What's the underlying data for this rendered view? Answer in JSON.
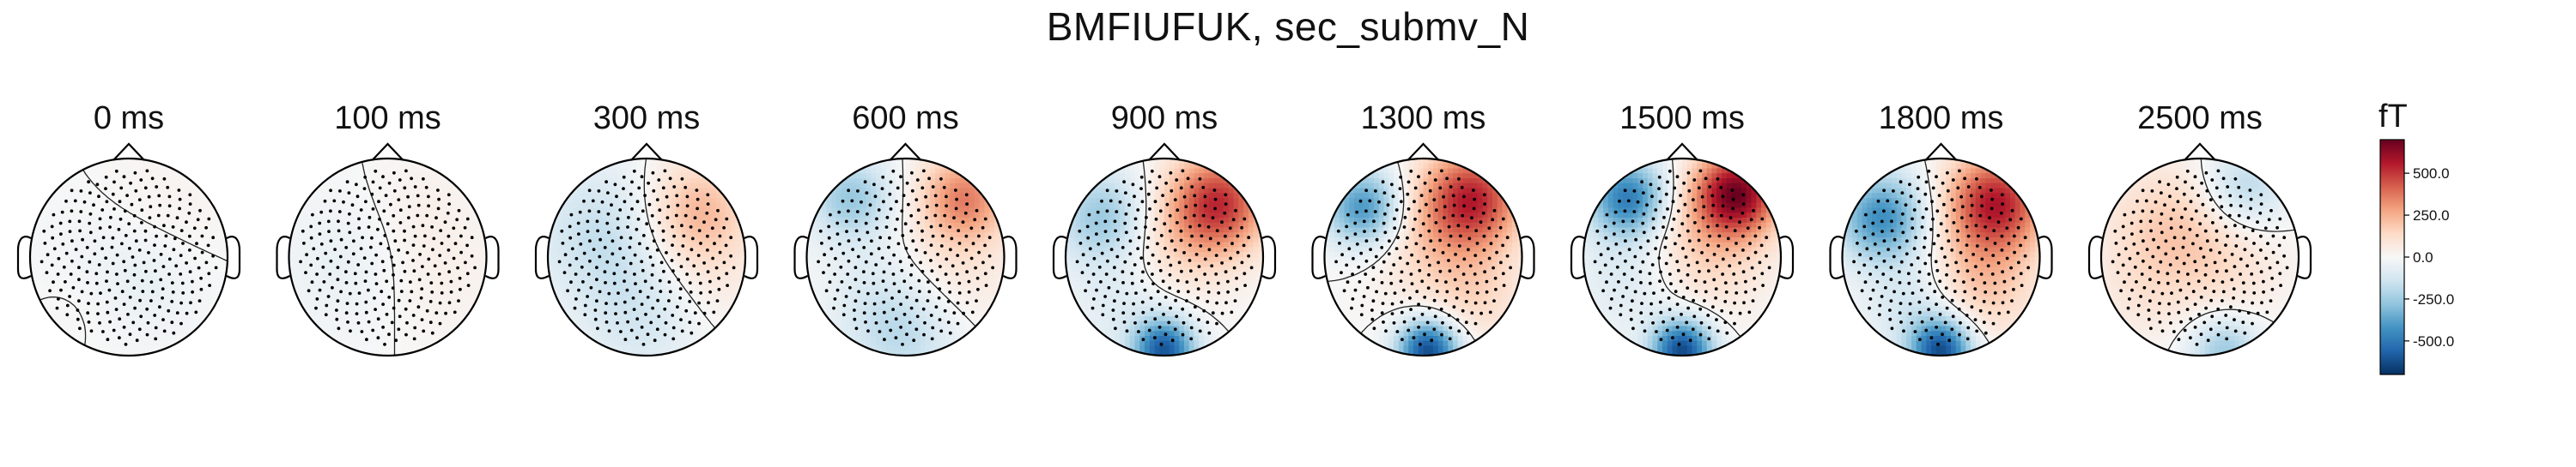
{
  "figure": {
    "title": "BMFIUFUK, sec_submv_N"
  },
  "chart_data": {
    "type": "heatmap",
    "title": "BMFIUFUK, sec_submv_N",
    "panels": [
      {
        "label": "0 ms",
        "time_ms": 0,
        "components": [
          {
            "cx": 0.2,
            "cy": 0.3,
            "amp": -0.07,
            "sigma": 0.4
          },
          {
            "cx": -0.2,
            "cy": -0.1,
            "amp": -0.05,
            "sigma": 0.5
          },
          {
            "cx": 0.5,
            "cy": -0.4,
            "amp": 0.04,
            "sigma": 0.4
          },
          {
            "cx": -0.5,
            "cy": 0.5,
            "amp": 0.03,
            "sigma": 0.3
          },
          {
            "cx": 0.0,
            "cy": -0.6,
            "amp": 0.03,
            "sigma": 0.4
          }
        ]
      },
      {
        "label": "100 ms",
        "time_ms": 100,
        "components": [
          {
            "cx": -0.4,
            "cy": 0.1,
            "amp": -0.1,
            "sigma": 0.5
          },
          {
            "cx": 0.4,
            "cy": 0.1,
            "amp": 0.08,
            "sigma": 0.5
          },
          {
            "cx": 0.3,
            "cy": -0.6,
            "amp": 0.04,
            "sigma": 0.35
          }
        ]
      },
      {
        "label": "300 ms",
        "time_ms": 300,
        "components": [
          {
            "cx": 0.5,
            "cy": -0.45,
            "amp": 0.42,
            "sigma": 0.38
          },
          {
            "cx": -0.45,
            "cy": -0.25,
            "amp": -0.28,
            "sigma": 0.5
          },
          {
            "cx": 0.0,
            "cy": 0.6,
            "amp": -0.22,
            "sigma": 0.45
          },
          {
            "cx": 0.55,
            "cy": 0.3,
            "amp": 0.12,
            "sigma": 0.4
          }
        ]
      },
      {
        "label": "600 ms",
        "time_ms": 600,
        "components": [
          {
            "cx": 0.6,
            "cy": -0.6,
            "amp": 0.6,
            "sigma": 0.32
          },
          {
            "cx": -0.55,
            "cy": -0.6,
            "amp": -0.45,
            "sigma": 0.3
          },
          {
            "cx": 0.0,
            "cy": 0.75,
            "amp": -0.35,
            "sigma": 0.42
          },
          {
            "cx": 0.4,
            "cy": 0.25,
            "amp": 0.18,
            "sigma": 0.45
          },
          {
            "cx": -0.3,
            "cy": 0.25,
            "amp": -0.1,
            "sigma": 0.4
          }
        ]
      },
      {
        "label": "900 ms",
        "time_ms": 900,
        "components": [
          {
            "cx": 0.55,
            "cy": -0.55,
            "amp": 0.85,
            "sigma": 0.35
          },
          {
            "cx": -0.6,
            "cy": -0.4,
            "amp": -0.5,
            "sigma": 0.35
          },
          {
            "cx": 0.0,
            "cy": 0.95,
            "amp": -1.0,
            "sigma": 0.22
          },
          {
            "cx": 0.0,
            "cy": -0.1,
            "amp": 0.25,
            "sigma": 0.45
          },
          {
            "cx": -0.35,
            "cy": 0.45,
            "amp": -0.2,
            "sigma": 0.4
          }
        ]
      },
      {
        "label": "1300 ms",
        "time_ms": 1300,
        "components": [
          {
            "cx": 0.5,
            "cy": -0.6,
            "amp": 0.85,
            "sigma": 0.35
          },
          {
            "cx": -0.6,
            "cy": -0.5,
            "amp": -0.75,
            "sigma": 0.28
          },
          {
            "cx": 0.05,
            "cy": 0.95,
            "amp": -1.1,
            "sigma": 0.22
          },
          {
            "cx": 0.1,
            "cy": -0.2,
            "amp": 0.25,
            "sigma": 0.45
          },
          {
            "cx": 0.55,
            "cy": 0.4,
            "amp": 0.2,
            "sigma": 0.35
          }
        ]
      },
      {
        "label": "1500 ms",
        "time_ms": 1500,
        "components": [
          {
            "cx": 0.55,
            "cy": -0.65,
            "amp": 1.1,
            "sigma": 0.3
          },
          {
            "cx": -0.55,
            "cy": -0.6,
            "amp": -0.85,
            "sigma": 0.28
          },
          {
            "cx": 0.0,
            "cy": 0.95,
            "amp": -1.1,
            "sigma": 0.22
          },
          {
            "cx": 0.2,
            "cy": -0.1,
            "amp": 0.3,
            "sigma": 0.45
          },
          {
            "cx": -0.5,
            "cy": 0.2,
            "amp": -0.2,
            "sigma": 0.4
          }
        ]
      },
      {
        "label": "1800 ms",
        "time_ms": 1800,
        "components": [
          {
            "cx": 0.55,
            "cy": -0.55,
            "amp": 0.95,
            "sigma": 0.35
          },
          {
            "cx": -0.6,
            "cy": -0.4,
            "amp": -0.75,
            "sigma": 0.32
          },
          {
            "cx": 0.0,
            "cy": 0.95,
            "amp": -1.05,
            "sigma": 0.22
          },
          {
            "cx": 0.4,
            "cy": 0.25,
            "amp": 0.35,
            "sigma": 0.4
          },
          {
            "cx": -0.25,
            "cy": 0.5,
            "amp": -0.25,
            "sigma": 0.35
          }
        ]
      },
      {
        "label": "2500 ms",
        "time_ms": 2500,
        "components": [
          {
            "cx": -0.3,
            "cy": -0.3,
            "amp": 0.3,
            "sigma": 0.45
          },
          {
            "cx": 0.45,
            "cy": -0.7,
            "amp": -0.35,
            "sigma": 0.3
          },
          {
            "cx": 0.25,
            "cy": 0.95,
            "amp": -0.45,
            "sigma": 0.25
          },
          {
            "cx": 0.3,
            "cy": 0.1,
            "amp": 0.15,
            "sigma": 0.4
          },
          {
            "cx": -0.6,
            "cy": 0.4,
            "amp": 0.1,
            "sigma": 0.35
          }
        ]
      }
    ],
    "colorbar": {
      "label": "fT",
      "vmin": -700,
      "vmax": 700,
      "ticks": [
        500,
        250,
        0,
        -250,
        -500
      ],
      "tick_labels": [
        "500.0",
        "250.0",
        "0.0",
        "-250.0",
        "-500.0"
      ],
      "colormap": "RdBu_r",
      "colors": [
        "#053061",
        "#2166ac",
        "#4393c3",
        "#92c5de",
        "#d1e5f0",
        "#f7f7f7",
        "#fddbc7",
        "#f4a582",
        "#d6604d",
        "#b2182b",
        "#67001f"
      ]
    },
    "sensor_count": 260,
    "contour_levels": [
      0
    ]
  }
}
